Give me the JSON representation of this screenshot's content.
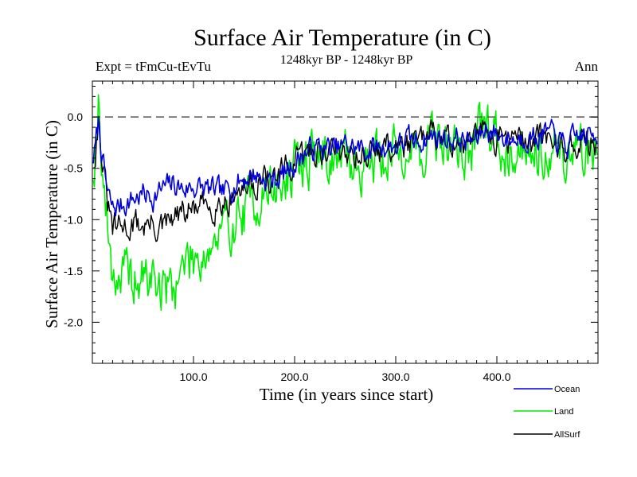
{
  "chart_data": {
    "type": "line",
    "title": "Surface Air Temperature (in C)",
    "subtitle": "1248kyr BP - 1248kyr BP",
    "experiment_label": "Expt = tFmCu-tEvTu",
    "season_label": "Ann",
    "xlabel": "Time (in years since start)",
    "ylabel": "Surface Air Temperature (in C)",
    "xlim": [
      0,
      500
    ],
    "ylim": [
      -2.4,
      0.35
    ],
    "x_ticks": [
      100,
      200,
      300,
      400
    ],
    "x_tick_labels": [
      "100.0",
      "200.0",
      "300.0",
      "400.0"
    ],
    "y_ticks": [
      0.0,
      -0.5,
      -1.0,
      -1.5,
      -2.0
    ],
    "y_tick_labels": [
      "0.0",
      "-0.5",
      "-1.0",
      "-1.5",
      "-2.0"
    ],
    "reference_line": 0.0,
    "x_knots": [
      0,
      3,
      6,
      10,
      15,
      20,
      30,
      40,
      50,
      60,
      70,
      80,
      90,
      100,
      110,
      120,
      130,
      140,
      150,
      160,
      170,
      180,
      190,
      200,
      210,
      220,
      230,
      240,
      250,
      260,
      270,
      280,
      290,
      300,
      310,
      320,
      330,
      340,
      350,
      360,
      370,
      380,
      390,
      400,
      410,
      420,
      430,
      440,
      450,
      460,
      470,
      480,
      490,
      500
    ],
    "series": [
      {
        "name": "Ocean",
        "color": "#0000dd",
        "knots": [
          -0.45,
          -0.3,
          -0.05,
          -0.4,
          -0.75,
          -0.9,
          -0.85,
          -0.8,
          -0.75,
          -0.78,
          -0.7,
          -0.65,
          -0.7,
          -0.68,
          -0.7,
          -0.72,
          -0.75,
          -0.65,
          -0.6,
          -0.55,
          -0.6,
          -0.62,
          -0.55,
          -0.45,
          -0.35,
          -0.3,
          -0.3,
          -0.32,
          -0.28,
          -0.3,
          -0.32,
          -0.3,
          -0.28,
          -0.28,
          -0.22,
          -0.25,
          -0.2,
          -0.18,
          -0.22,
          -0.2,
          -0.25,
          -0.22,
          -0.1,
          -0.18,
          -0.2,
          -0.22,
          -0.18,
          -0.2,
          -0.15,
          -0.22,
          -0.3,
          -0.18,
          -0.2,
          -0.15
        ],
        "noise": 0.1,
        "seed": 7
      },
      {
        "name": "Land",
        "color": "#00ee00",
        "knots": [
          -0.6,
          -0.3,
          0.2,
          -0.5,
          -1.1,
          -1.5,
          -1.55,
          -1.6,
          -1.6,
          -1.55,
          -1.7,
          -1.65,
          -1.45,
          -1.35,
          -1.3,
          -1.25,
          -1.15,
          -1.0,
          -0.95,
          -0.8,
          -0.75,
          -0.7,
          -0.65,
          -0.55,
          -0.4,
          -0.35,
          -0.35,
          -0.4,
          -0.42,
          -0.45,
          -0.45,
          -0.38,
          -0.35,
          -0.32,
          -0.3,
          -0.35,
          -0.28,
          -0.2,
          -0.3,
          -0.3,
          -0.35,
          -0.25,
          -0.05,
          -0.25,
          -0.3,
          -0.3,
          -0.25,
          -0.3,
          -0.28,
          -0.35,
          -0.4,
          -0.3,
          -0.35,
          -0.3
        ],
        "noise": 0.22,
        "seed": 19
      },
      {
        "name": "AllSurf",
        "color": "#000000",
        "knots": [
          -0.5,
          -0.3,
          0.0,
          -0.45,
          -0.85,
          -1.1,
          -1.08,
          -1.05,
          -1.05,
          -1.05,
          -1.1,
          -1.0,
          -0.95,
          -0.9,
          -0.88,
          -0.85,
          -0.82,
          -0.75,
          -0.7,
          -0.62,
          -0.62,
          -0.6,
          -0.55,
          -0.47,
          -0.37,
          -0.32,
          -0.32,
          -0.33,
          -0.32,
          -0.34,
          -0.36,
          -0.32,
          -0.3,
          -0.3,
          -0.24,
          -0.27,
          -0.22,
          -0.18,
          -0.24,
          -0.22,
          -0.28,
          -0.23,
          -0.08,
          -0.2,
          -0.23,
          -0.25,
          -0.21,
          -0.23,
          -0.18,
          -0.26,
          -0.33,
          -0.22,
          -0.25,
          -0.2
        ],
        "noise": 0.12,
        "seed": 31
      }
    ],
    "legend": [
      "Ocean",
      "Land",
      "AllSurf"
    ]
  }
}
